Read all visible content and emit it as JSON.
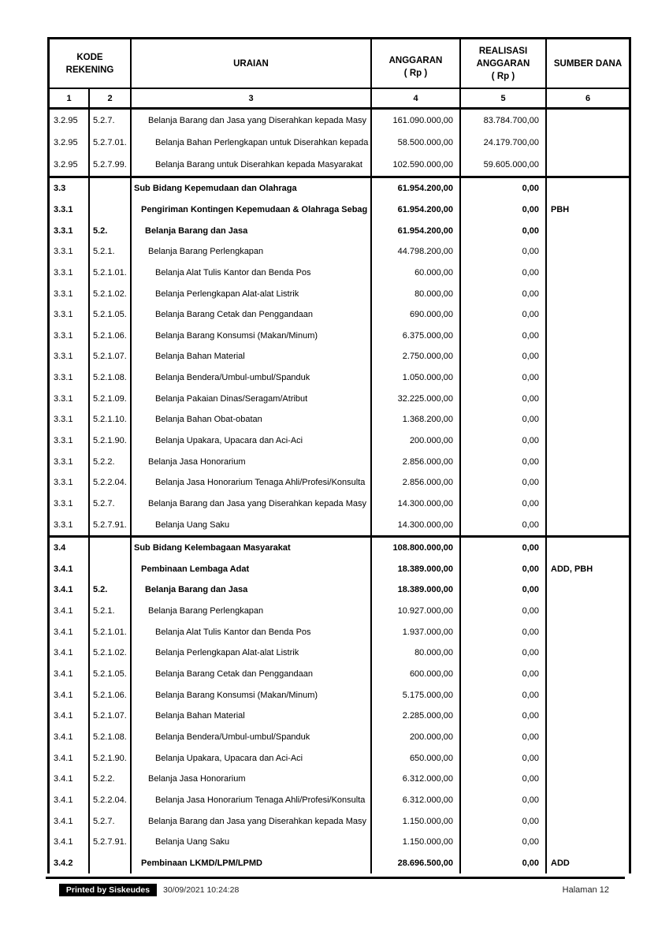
{
  "table": {
    "headers": {
      "kode_lines": [
        "KODE",
        "REKENING"
      ],
      "uraian": "URAIAN",
      "anggaran_lines": [
        "ANGGARAN",
        "( Rp )"
      ],
      "realisasi_lines": [
        "REALISASI",
        "ANGGARAN",
        "( Rp )"
      ],
      "sumber_dana": "SUMBER DANA",
      "col_numbers": [
        "1",
        "2",
        "3",
        "4",
        "5",
        "6"
      ]
    },
    "groups": [
      {
        "rows": [
          {
            "k1": "3.2.95",
            "k2": "5.2.7.",
            "u": "Belanja Barang dan Jasa yang Diserahkan kepada Masy",
            "ind": 3,
            "a": "161.090.000,00",
            "r": "83.784.700,00",
            "s": "",
            "b": false
          },
          {
            "k1": "3.2.95",
            "k2": "5.2.7.01.",
            "u": "Belanja Bahan Perlengkapan untuk Diserahkan kepada",
            "ind": 4,
            "a": "58.500.000,00",
            "r": "24.179.700,00",
            "s": "",
            "b": false
          },
          {
            "k1": "3.2.95",
            "k2": "5.2.7.99.",
            "u": "Belanja Barang untuk Diserahkan kepada Masyarakat",
            "ind": 4,
            "a": "102.590.000,00",
            "r": "59.605.000,00",
            "s": "",
            "b": false
          }
        ]
      },
      {
        "rows": [
          {
            "k1": "3.3",
            "k2": "",
            "u": "Sub Bidang Kepemudaan dan Olahraga",
            "ind": 0,
            "a": "61.954.200,00",
            "r": "0,00",
            "s": "",
            "b": true
          },
          {
            "k1": "3.3.1",
            "k2": "",
            "u": "Pengiriman Kontingen Kepemudaan & Olahraga Sebag",
            "ind": 1,
            "a": "61.954.200,00",
            "r": "0,00",
            "s": "PBH",
            "b": true
          },
          {
            "k1": "3.3.1",
            "k2": "5.2.",
            "u": "Belanja Barang dan Jasa",
            "ind": 2,
            "a": "61.954.200,00",
            "r": "0,00",
            "s": "",
            "b": true
          },
          {
            "k1": "3.3.1",
            "k2": "5.2.1.",
            "u": "Belanja Barang Perlengkapan",
            "ind": 3,
            "a": "44.798.200,00",
            "r": "0,00",
            "s": "",
            "b": false
          },
          {
            "k1": "3.3.1",
            "k2": "5.2.1.01.",
            "u": "Belanja Alat Tulis Kantor dan Benda Pos",
            "ind": 4,
            "a": "60.000,00",
            "r": "0,00",
            "s": "",
            "b": false
          },
          {
            "k1": "3.3.1",
            "k2": "5.2.1.02.",
            "u": "Belanja Perlengkapan Alat-alat Listrik",
            "ind": 4,
            "a": "80.000,00",
            "r": "0,00",
            "s": "",
            "b": false
          },
          {
            "k1": "3.3.1",
            "k2": "5.2.1.05.",
            "u": "Belanja Barang Cetak dan Penggandaan",
            "ind": 4,
            "a": "690.000,00",
            "r": "0,00",
            "s": "",
            "b": false
          },
          {
            "k1": "3.3.1",
            "k2": "5.2.1.06.",
            "u": "Belanja Barang Konsumsi (Makan/Minum)",
            "ind": 4,
            "a": "6.375.000,00",
            "r": "0,00",
            "s": "",
            "b": false
          },
          {
            "k1": "3.3.1",
            "k2": "5.2.1.07.",
            "u": "Belanja Bahan Material",
            "ind": 4,
            "a": "2.750.000,00",
            "r": "0,00",
            "s": "",
            "b": false
          },
          {
            "k1": "3.3.1",
            "k2": "5.2.1.08.",
            "u": "Belanja Bendera/Umbul-umbul/Spanduk",
            "ind": 4,
            "a": "1.050.000,00",
            "r": "0,00",
            "s": "",
            "b": false
          },
          {
            "k1": "3.3.1",
            "k2": "5.2.1.09.",
            "u": "Belanja Pakaian Dinas/Seragam/Atribut",
            "ind": 4,
            "a": "32.225.000,00",
            "r": "0,00",
            "s": "",
            "b": false
          },
          {
            "k1": "3.3.1",
            "k2": "5.2.1.10.",
            "u": "Belanja Bahan Obat-obatan",
            "ind": 4,
            "a": "1.368.200,00",
            "r": "0,00",
            "s": "",
            "b": false
          },
          {
            "k1": "3.3.1",
            "k2": "5.2.1.90.",
            "u": "Belanja Upakara, Upacara dan Aci-Aci",
            "ind": 4,
            "a": "200.000,00",
            "r": "0,00",
            "s": "",
            "b": false
          },
          {
            "k1": "3.3.1",
            "k2": "5.2.2.",
            "u": "Belanja Jasa Honorarium",
            "ind": 3,
            "a": "2.856.000,00",
            "r": "0,00",
            "s": "",
            "b": false
          },
          {
            "k1": "3.3.1",
            "k2": "5.2.2.04.",
            "u": "Belanja Jasa Honorarium Tenaga Ahli/Profesi/Konsulta",
            "ind": 4,
            "a": "2.856.000,00",
            "r": "0,00",
            "s": "",
            "b": false
          },
          {
            "k1": "3.3.1",
            "k2": "5.2.7.",
            "u": "Belanja Barang dan Jasa yang Diserahkan kepada Masy",
            "ind": 3,
            "a": "14.300.000,00",
            "r": "0,00",
            "s": "",
            "b": false
          },
          {
            "k1": "3.3.1",
            "k2": "5.2.7.91.",
            "u": "Belanja Uang Saku",
            "ind": 4,
            "a": "14.300.000,00",
            "r": "0,00",
            "s": "",
            "b": false
          }
        ]
      },
      {
        "rows": [
          {
            "k1": "3.4",
            "k2": "",
            "u": "Sub Bidang Kelembagaan Masyarakat",
            "ind": 0,
            "a": "108.800.000,00",
            "r": "0,00",
            "s": "",
            "b": true
          },
          {
            "k1": "3.4.1",
            "k2": "",
            "u": "Pembinaan Lembaga Adat",
            "ind": 1,
            "a": "18.389.000,00",
            "r": "0,00",
            "s": "ADD, PBH",
            "b": true
          },
          {
            "k1": "3.4.1",
            "k2": "5.2.",
            "u": "Belanja Barang dan Jasa",
            "ind": 2,
            "a": "18.389.000,00",
            "r": "0,00",
            "s": "",
            "b": true
          },
          {
            "k1": "3.4.1",
            "k2": "5.2.1.",
            "u": "Belanja Barang Perlengkapan",
            "ind": 3,
            "a": "10.927.000,00",
            "r": "0,00",
            "s": "",
            "b": false
          },
          {
            "k1": "3.4.1",
            "k2": "5.2.1.01.",
            "u": "Belanja Alat Tulis Kantor dan Benda Pos",
            "ind": 4,
            "a": "1.937.000,00",
            "r": "0,00",
            "s": "",
            "b": false
          },
          {
            "k1": "3.4.1",
            "k2": "5.2.1.02.",
            "u": "Belanja Perlengkapan Alat-alat Listrik",
            "ind": 4,
            "a": "80.000,00",
            "r": "0,00",
            "s": "",
            "b": false
          },
          {
            "k1": "3.4.1",
            "k2": "5.2.1.05.",
            "u": "Belanja Barang Cetak dan Penggandaan",
            "ind": 4,
            "a": "600.000,00",
            "r": "0,00",
            "s": "",
            "b": false
          },
          {
            "k1": "3.4.1",
            "k2": "5.2.1.06.",
            "u": "Belanja Barang Konsumsi (Makan/Minum)",
            "ind": 4,
            "a": "5.175.000,00",
            "r": "0,00",
            "s": "",
            "b": false
          },
          {
            "k1": "3.4.1",
            "k2": "5.2.1.07.",
            "u": "Belanja Bahan Material",
            "ind": 4,
            "a": "2.285.000,00",
            "r": "0,00",
            "s": "",
            "b": false
          },
          {
            "k1": "3.4.1",
            "k2": "5.2.1.08.",
            "u": "Belanja Bendera/Umbul-umbul/Spanduk",
            "ind": 4,
            "a": "200.000,00",
            "r": "0,00",
            "s": "",
            "b": false
          },
          {
            "k1": "3.4.1",
            "k2": "5.2.1.90.",
            "u": "Belanja Upakara, Upacara dan Aci-Aci",
            "ind": 4,
            "a": "650.000,00",
            "r": "0,00",
            "s": "",
            "b": false
          },
          {
            "k1": "3.4.1",
            "k2": "5.2.2.",
            "u": "Belanja Jasa Honorarium",
            "ind": 3,
            "a": "6.312.000,00",
            "r": "0,00",
            "s": "",
            "b": false
          },
          {
            "k1": "3.4.1",
            "k2": "5.2.2.04.",
            "u": "Belanja Jasa Honorarium Tenaga Ahli/Profesi/Konsulta",
            "ind": 4,
            "a": "6.312.000,00",
            "r": "0,00",
            "s": "",
            "b": false
          },
          {
            "k1": "3.4.1",
            "k2": "5.2.7.",
            "u": "Belanja Barang dan Jasa yang Diserahkan kepada Masy",
            "ind": 3,
            "a": "1.150.000,00",
            "r": "0,00",
            "s": "",
            "b": false
          },
          {
            "k1": "3.4.1",
            "k2": "5.2.7.91.",
            "u": "Belanja Uang Saku",
            "ind": 4,
            "a": "1.150.000,00",
            "r": "0,00",
            "s": "",
            "b": false
          },
          {
            "k1": "3.4.2",
            "k2": "",
            "u": "Pembinaan LKMD/LPM/LPMD",
            "ind": 1,
            "a": "28.696.500,00",
            "r": "0,00",
            "s": "ADD",
            "b": true
          }
        ]
      }
    ]
  },
  "footer": {
    "printed_by": "Printed by Siskeudes",
    "timestamp": "30/09/2021 10:24:28",
    "page_label": "Halaman 12"
  }
}
